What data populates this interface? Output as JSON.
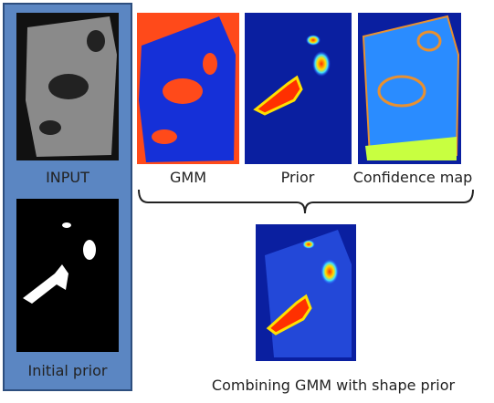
{
  "left_panel": {
    "input_label": "INPUT",
    "prior_label": "Initial prior"
  },
  "panels": [
    {
      "label": "GMM"
    },
    {
      "label": "Prior"
    },
    {
      "label": "Confidence map"
    }
  ],
  "result": {
    "label": "Combining GMM with shape prior"
  }
}
